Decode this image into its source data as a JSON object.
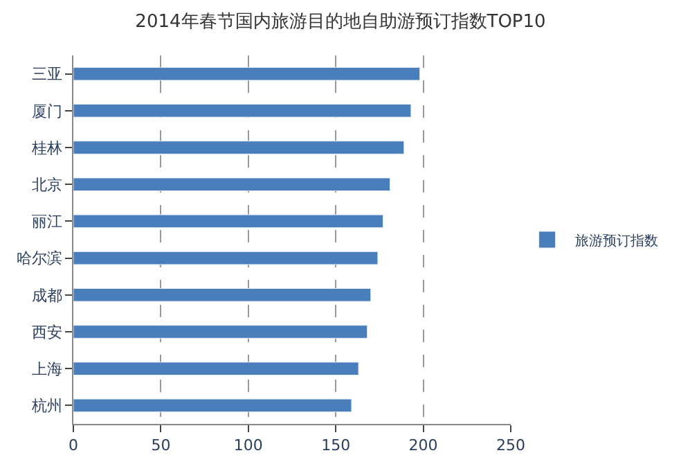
{
  "chart_data": {
    "type": "bar",
    "orientation": "horizontal",
    "title": "2014年春节国内旅游目的地自助游预订指数TOP10",
    "categories": [
      "三亚",
      "厦门",
      "桂林",
      "北京",
      "丽江",
      "哈尔滨",
      "成都",
      "西安",
      "上海",
      "杭州"
    ],
    "series": [
      {
        "name": "旅游预订指数",
        "color": "#4a7ebb",
        "values": [
          198,
          193,
          189,
          181,
          177,
          174,
          170,
          168,
          163,
          159
        ]
      }
    ],
    "xlim": [
      0,
      250
    ],
    "xticks": [
      0,
      50,
      100,
      150,
      200,
      250
    ],
    "grid": "x",
    "legend": "right"
  }
}
